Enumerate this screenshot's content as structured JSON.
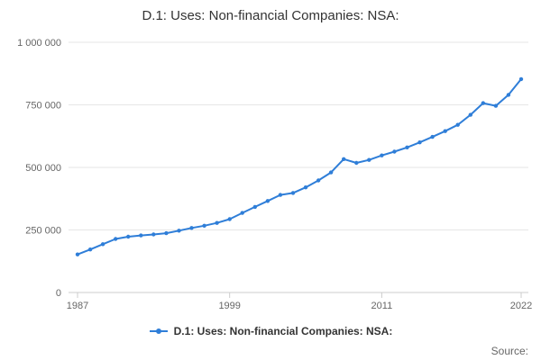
{
  "footer": {
    "source": "Source:"
  },
  "chart_data": {
    "type": "line",
    "title": "D.1: Uses: Non-financial Companies: NSA:",
    "xlabel": "",
    "ylabel": "",
    "x": [
      1987,
      1988,
      1989,
      1990,
      1991,
      1992,
      1993,
      1994,
      1995,
      1996,
      1997,
      1998,
      1999,
      2000,
      2001,
      2002,
      2003,
      2004,
      2005,
      2006,
      2007,
      2008,
      2009,
      2010,
      2011,
      2012,
      2013,
      2014,
      2015,
      2016,
      2017,
      2018,
      2019,
      2020,
      2021,
      2022
    ],
    "series": [
      {
        "name": "D.1: Uses: Non-financial Companies: NSA:",
        "values": [
          152000,
          172000,
          193000,
          214000,
          223000,
          228000,
          232000,
          237000,
          247000,
          258000,
          267000,
          278000,
          293000,
          318000,
          342000,
          366000,
          390000,
          398000,
          420000,
          448000,
          480000,
          533000,
          518000,
          530000,
          548000,
          563000,
          580000,
          600000,
          622000,
          645000,
          670000,
          710000,
          757000,
          746000,
          790000,
          853000
        ]
      }
    ],
    "xticks": [
      1987,
      1999,
      2011,
      2022
    ],
    "ytick_values": [
      0,
      250000,
      500000,
      750000,
      1000000
    ],
    "ytick_labels": [
      "0",
      "250 000",
      "500 000",
      "750 000",
      "1 000 000"
    ],
    "ylim": [
      0,
      1000000
    ],
    "grid": true,
    "legend_position": "bottom",
    "line_color": "#2f7ed8",
    "grid_color": "#e6e6e6",
    "axis_color": "#cccccc",
    "title_color": "#333333",
    "label_color": "#666666"
  }
}
